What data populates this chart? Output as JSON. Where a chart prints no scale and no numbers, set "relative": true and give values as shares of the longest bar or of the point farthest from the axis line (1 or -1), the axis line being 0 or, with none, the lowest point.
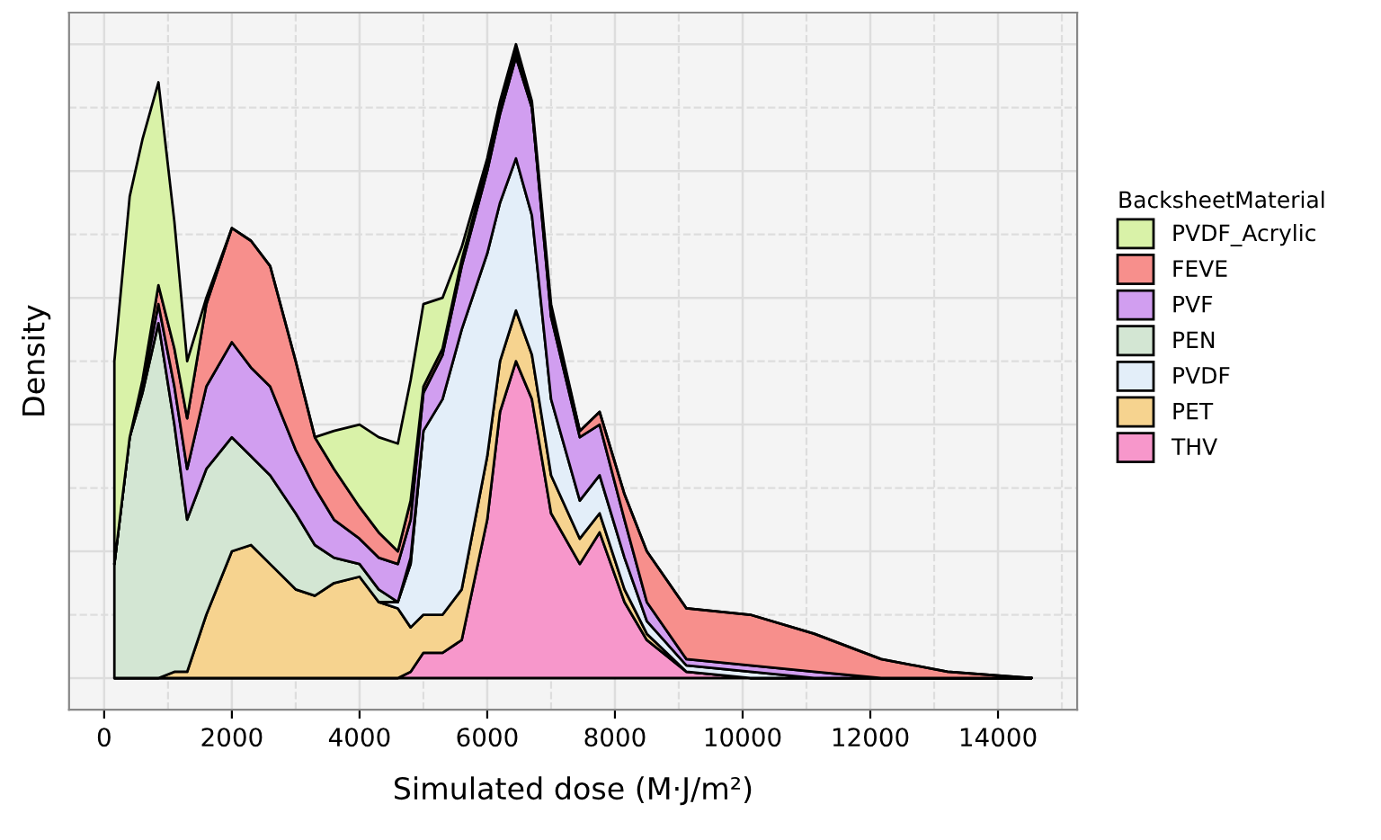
{
  "chart_data": {
    "type": "area",
    "stacked": true,
    "relative": true,
    "xlabel": "Simulated dose (M·J/m²)",
    "ylabel": "Density",
    "legend_title": "BacksheetMaterial",
    "legend": "right",
    "grid": true,
    "tick_labels": "x",
    "x": [
      160,
      400,
      600,
      850,
      1100,
      1300,
      1600,
      2000,
      2300,
      2600,
      3000,
      3300,
      3600,
      4000,
      4300,
      4600,
      4800,
      5000,
      5300,
      5600,
      6000,
      6200,
      6450,
      6700,
      7000,
      7450,
      7760,
      8150,
      8500,
      9120,
      10120,
      11120,
      12170,
      13210,
      14525
    ],
    "xlim": [
      -550,
      15240
    ],
    "xticks": [
      0,
      2000,
      4000,
      6000,
      8000,
      10000,
      12000,
      14000
    ],
    "series": [
      {
        "name": "THV",
        "color": "#f797cb",
        "values": [
          0,
          0,
          0,
          0,
          0,
          0,
          0,
          0,
          0,
          0,
          0,
          0,
          0,
          0,
          0,
          0,
          0.01,
          0.04,
          0.04,
          0.06,
          0.25,
          0.42,
          0.5,
          0.44,
          0.26,
          0.18,
          0.23,
          0.12,
          0.06,
          0.01,
          0,
          0,
          0,
          0,
          0
        ]
      },
      {
        "name": "PET",
        "color": "#f6d38f",
        "values": [
          0,
          0,
          0,
          0,
          0.01,
          0.01,
          0.1,
          0.2,
          0.21,
          0.18,
          0.14,
          0.13,
          0.15,
          0.16,
          0.12,
          0.11,
          0.07,
          0.06,
          0.06,
          0.08,
          0.1,
          0.08,
          0.08,
          0.07,
          0.06,
          0.04,
          0.03,
          0.02,
          0.01,
          0,
          0,
          0,
          0,
          0,
          0
        ]
      },
      {
        "name": "PVDF",
        "color": "#e3eef9",
        "values": [
          null,
          null,
          null,
          null,
          null,
          null,
          null,
          null,
          null,
          null,
          null,
          null,
          null,
          null,
          0,
          0.01,
          0.1,
          0.29,
          0.34,
          0.41,
          0.32,
          0.25,
          0.24,
          0.22,
          0.12,
          0.06,
          0.06,
          0.05,
          0.02,
          0.01,
          0.01,
          0,
          0,
          0,
          0
        ]
      },
      {
        "name": "PEN",
        "color": "#d3e6d3",
        "values": [
          0.18,
          0.38,
          0.45,
          0.56,
          0.39,
          0.24,
          0.23,
          0.18,
          0.14,
          0.14,
          0.12,
          0.08,
          0.04,
          0.02,
          0.02,
          0,
          0.01,
          0,
          null,
          null,
          null,
          null,
          null,
          null,
          null,
          null,
          null,
          null,
          null,
          null,
          null,
          null,
          null,
          null,
          null
        ]
      },
      {
        "name": "PVF",
        "color": "#d19ef0",
        "values": [
          0,
          0,
          0.01,
          0.03,
          0.06,
          0.08,
          0.13,
          0.15,
          0.14,
          0.14,
          0.1,
          0.09,
          0.06,
          0.04,
          0.05,
          0.06,
          0.06,
          0.06,
          0.07,
          0.1,
          0.13,
          0.14,
          0.16,
          0.17,
          0.13,
          0.1,
          0.08,
          0.06,
          0.03,
          0.01,
          0.01,
          0.01,
          0,
          0,
          0
        ]
      },
      {
        "name": "FEVE",
        "color": "#f78f8c",
        "values": [
          0,
          0,
          0.01,
          0.03,
          0.06,
          0.08,
          0.13,
          0.18,
          0.2,
          0.19,
          0.14,
          0.08,
          0.08,
          0.05,
          0.04,
          0.02,
          0.03,
          0.01,
          0.01,
          0.01,
          0.01,
          0.01,
          0.01,
          0,
          0.01,
          0.01,
          0.02,
          0.04,
          0.08,
          0.08,
          0.08,
          0.06,
          0.03,
          0.01,
          0
        ]
      },
      {
        "name": "PVDF_Acrylic",
        "color": "#d9f2a8",
        "values": [
          0.32,
          0.38,
          0.38,
          0.32,
          0.2,
          0.09,
          0.01,
          0,
          0,
          0,
          0,
          0,
          0.06,
          0.13,
          0.15,
          0.17,
          0.19,
          0.13,
          0.08,
          0.02,
          0.01,
          0.01,
          0.01,
          0.01,
          0.01,
          0,
          0,
          0,
          0,
          0,
          0,
          0,
          0,
          0,
          0
        ]
      }
    ]
  }
}
